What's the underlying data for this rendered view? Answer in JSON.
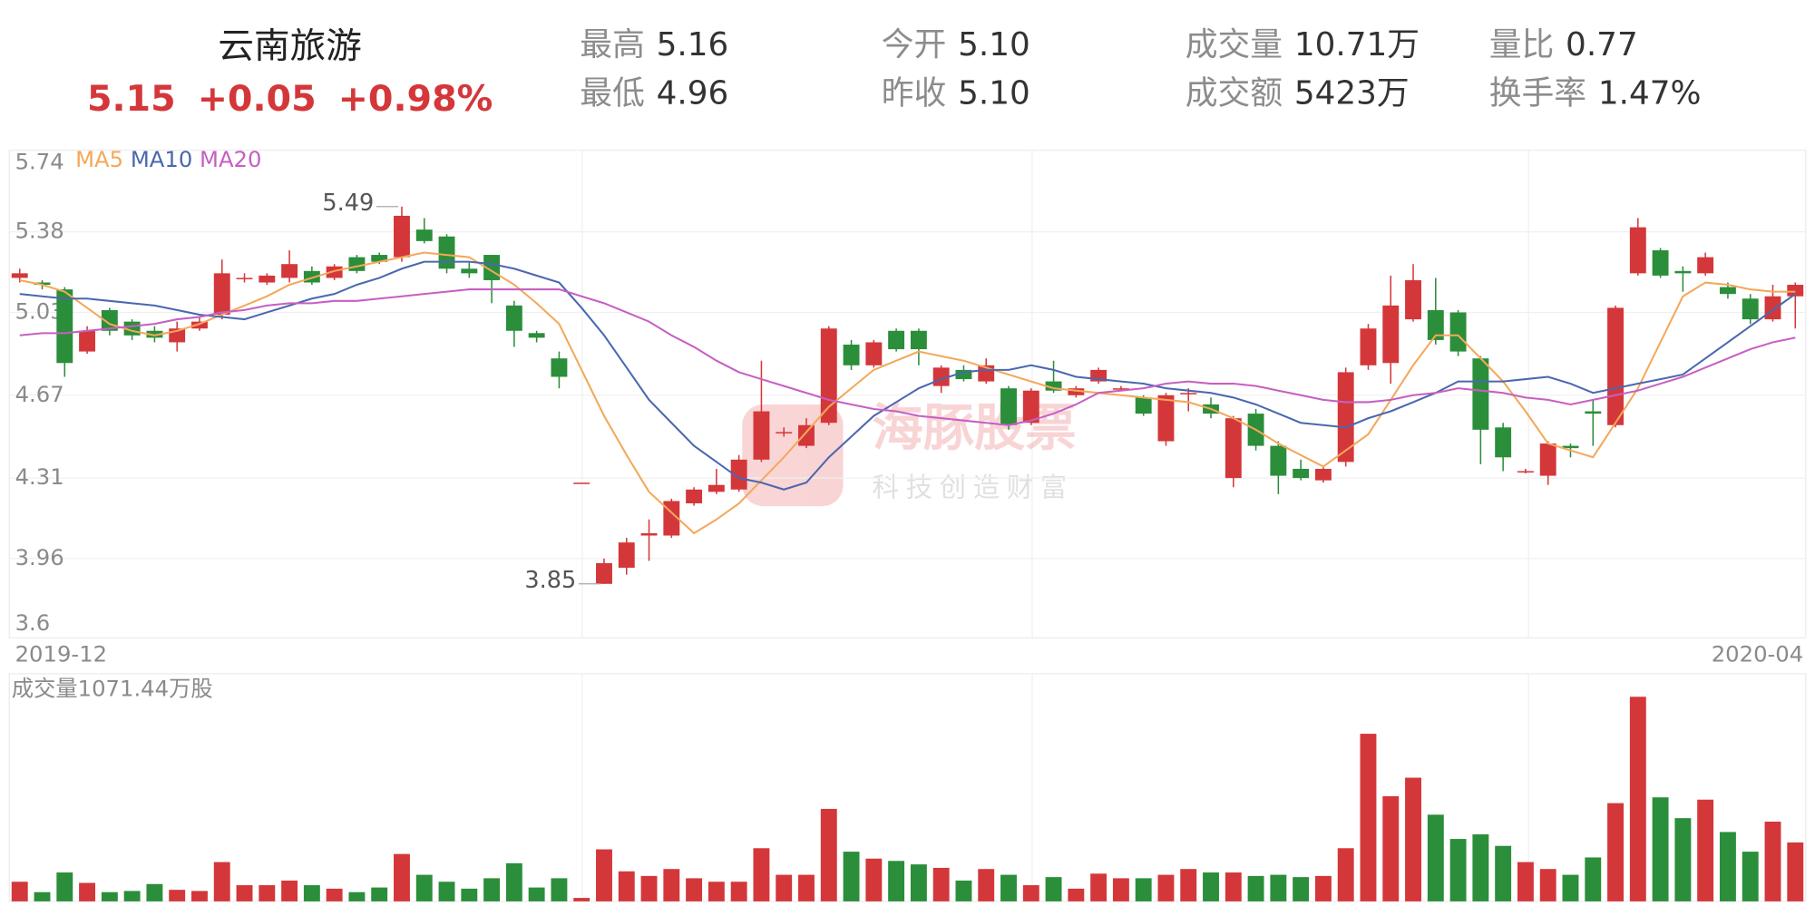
{
  "header": {
    "name": "云南旅游",
    "price": "5.15",
    "change": "+0.05",
    "change_pct": "+0.98%",
    "stats": [
      {
        "label": "最高",
        "value": "5.16"
      },
      {
        "label": "最低",
        "value": "4.96"
      },
      {
        "label": "今开",
        "value": "5.10"
      },
      {
        "label": "昨收",
        "value": "5.10"
      },
      {
        "label": "成交量",
        "value": "10.71万"
      },
      {
        "label": "成交额",
        "value": "5423万"
      },
      {
        "label": "量比",
        "value": "0.77"
      },
      {
        "label": "换手率",
        "value": "1.47%"
      }
    ]
  },
  "watermark": {
    "title": "海豚股票",
    "slogan": "科技创造财富"
  },
  "chart_data": [
    {
      "type": "candlestick",
      "categories": [
        "2019-12",
        null,
        null,
        null,
        null,
        null,
        null,
        null,
        null,
        null,
        null,
        null,
        null,
        null,
        null,
        null,
        null,
        null,
        null,
        null,
        null,
        null,
        null,
        null,
        null,
        null,
        null,
        null,
        null,
        null,
        null,
        null,
        null,
        null,
        null,
        null,
        null,
        null,
        null,
        null,
        null,
        null,
        null,
        null,
        null,
        null,
        null,
        null,
        null,
        null,
        null,
        null,
        null,
        null,
        null,
        null,
        null,
        null,
        null,
        null,
        null,
        null,
        null,
        null,
        null,
        null,
        null,
        null,
        null,
        null,
        null,
        null,
        null,
        null,
        null,
        null,
        null,
        null,
        null,
        "2020-04"
      ],
      "open": [
        5.18,
        5.16,
        5.13,
        4.86,
        5.04,
        4.99,
        4.95,
        4.9,
        4.96,
        5.02,
        5.18,
        5.16,
        5.18,
        5.21,
        5.18,
        5.27,
        5.28,
        5.27,
        5.39,
        5.36,
        5.22,
        5.28,
        5.06,
        4.94,
        4.83,
        4.29,
        3.85,
        3.92,
        4.06,
        4.06,
        4.2,
        4.25,
        4.26,
        4.39,
        4.51,
        4.45,
        4.55,
        4.89,
        4.8,
        4.95,
        4.95,
        4.71,
        4.78,
        4.73,
        4.7,
        4.55,
        4.73,
        4.67,
        4.73,
        4.7,
        4.66,
        4.47,
        4.68,
        4.63,
        4.31,
        4.59,
        4.45,
        4.35,
        4.3,
        4.38,
        4.8,
        4.81,
        5.0,
        5.04,
        5.03,
        4.83,
        4.53,
        4.34,
        4.32,
        4.45,
        4.6,
        4.54,
        5.2,
        5.3,
        5.21,
        5.2,
        5.14,
        5.09,
        5.0,
        5.1
      ],
      "high": [
        5.22,
        5.17,
        5.14,
        4.97,
        5.05,
        5.0,
        4.97,
        4.99,
        5.01,
        5.26,
        5.2,
        5.2,
        5.3,
        5.23,
        5.24,
        5.28,
        5.29,
        5.49,
        5.44,
        5.37,
        5.25,
        5.28,
        5.08,
        4.95,
        4.86,
        4.29,
        3.96,
        4.05,
        4.13,
        4.22,
        4.27,
        4.35,
        4.41,
        4.82,
        4.53,
        4.57,
        4.97,
        4.91,
        4.91,
        4.96,
        4.96,
        4.8,
        4.8,
        4.83,
        4.71,
        4.7,
        4.82,
        4.71,
        4.79,
        4.71,
        4.67,
        4.68,
        4.7,
        4.66,
        4.58,
        4.61,
        4.47,
        4.39,
        4.36,
        4.79,
        4.98,
        5.19,
        5.24,
        5.18,
        5.04,
        4.84,
        4.55,
        4.35,
        4.47,
        4.46,
        4.65,
        5.06,
        5.44,
        5.31,
        5.23,
        5.29,
        5.16,
        5.11,
        5.15,
        5.16
      ],
      "low": [
        5.16,
        5.13,
        4.75,
        4.85,
        4.93,
        4.91,
        4.9,
        4.86,
        4.95,
        5.0,
        5.16,
        5.15,
        5.16,
        5.15,
        5.17,
        5.2,
        5.24,
        5.25,
        5.33,
        5.2,
        5.18,
        5.07,
        4.88,
        4.9,
        4.7,
        4.29,
        3.85,
        3.89,
        3.95,
        4.05,
        4.19,
        4.24,
        4.25,
        4.38,
        4.49,
        4.44,
        4.54,
        4.78,
        4.79,
        4.86,
        4.8,
        4.68,
        4.73,
        4.72,
        4.52,
        4.54,
        4.68,
        4.66,
        4.72,
        4.69,
        4.58,
        4.45,
        4.6,
        4.57,
        4.27,
        4.43,
        4.24,
        4.3,
        4.29,
        4.36,
        4.78,
        4.72,
        4.99,
        4.89,
        4.84,
        4.37,
        4.34,
        4.33,
        4.28,
        4.4,
        4.45,
        4.53,
        5.19,
        5.18,
        5.12,
        5.19,
        5.09,
        4.98,
        4.99,
        4.96
      ],
      "close": [
        5.2,
        5.15,
        4.81,
        4.95,
        4.95,
        4.93,
        4.92,
        4.96,
        4.99,
        5.2,
        5.18,
        5.19,
        5.24,
        5.16,
        5.23,
        5.21,
        5.25,
        5.45,
        5.34,
        5.22,
        5.2,
        5.17,
        4.95,
        4.92,
        4.75,
        4.29,
        3.94,
        4.03,
        4.07,
        4.21,
        4.26,
        4.28,
        4.39,
        4.6,
        4.51,
        4.54,
        4.96,
        4.8,
        4.9,
        4.87,
        4.87,
        4.79,
        4.74,
        4.8,
        4.54,
        4.69,
        4.69,
        4.7,
        4.78,
        4.7,
        4.59,
        4.67,
        4.68,
        4.59,
        4.57,
        4.45,
        4.32,
        4.31,
        4.35,
        4.77,
        4.96,
        5.06,
        5.17,
        4.91,
        4.86,
        4.52,
        4.4,
        4.34,
        4.46,
        4.44,
        4.59,
        5.05,
        5.4,
        5.19,
        5.2,
        5.27,
        5.11,
        5.0,
        5.1,
        5.15
      ],
      "up_color": "#d4373a",
      "down_color": "#2b8e3a",
      "series": [
        {
          "name": "MA5",
          "color": "#f4a85a",
          "values": [
            5.17,
            5.15,
            5.12,
            5.05,
            4.98,
            4.95,
            4.93,
            4.95,
            4.98,
            5.02,
            5.06,
            5.1,
            5.15,
            5.18,
            5.21,
            5.23,
            5.25,
            5.27,
            5.29,
            5.28,
            5.27,
            5.21,
            5.15,
            5.07,
            4.98,
            4.78,
            4.58,
            4.41,
            4.25,
            4.16,
            4.07,
            4.13,
            4.2,
            4.3,
            4.4,
            4.51,
            4.62,
            4.7,
            4.78,
            4.82,
            4.86,
            4.84,
            4.82,
            4.79,
            4.76,
            4.73,
            4.7,
            4.69,
            4.68,
            4.67,
            4.66,
            4.65,
            4.64,
            4.61,
            4.57,
            4.52,
            4.46,
            4.41,
            4.36,
            4.43,
            4.5,
            4.65,
            4.8,
            4.93,
            4.93,
            4.83,
            4.73,
            4.6,
            4.46,
            4.43,
            4.4,
            4.55,
            4.7,
            4.9,
            5.1,
            5.16,
            5.15,
            5.13,
            5.12,
            5.12
          ]
        },
        {
          "name": "MA10",
          "color": "#4a67b0",
          "values": [
            5.11,
            5.1,
            5.09,
            5.09,
            5.08,
            5.07,
            5.06,
            5.04,
            5.02,
            5.01,
            5.0,
            5.03,
            5.06,
            5.09,
            5.11,
            5.15,
            5.18,
            5.22,
            5.25,
            5.25,
            5.25,
            5.24,
            5.22,
            5.19,
            5.16,
            5.05,
            4.93,
            4.79,
            4.65,
            4.55,
            4.45,
            4.38,
            4.31,
            4.29,
            4.26,
            4.29,
            4.4,
            4.49,
            4.58,
            4.64,
            4.7,
            4.74,
            4.77,
            4.78,
            4.78,
            4.8,
            4.78,
            4.75,
            4.74,
            4.73,
            4.72,
            4.7,
            4.69,
            4.68,
            4.66,
            4.63,
            4.59,
            4.55,
            4.54,
            4.53,
            4.57,
            4.6,
            4.64,
            4.68,
            4.73,
            4.73,
            4.73,
            4.74,
            4.75,
            4.72,
            4.68,
            4.7,
            4.72,
            4.74,
            4.76,
            4.83,
            4.9,
            4.97,
            5.04,
            5.11
          ]
        },
        {
          "name": "MA20",
          "color": "#c65fc2",
          "values": [
            4.93,
            4.94,
            4.94,
            4.95,
            4.96,
            4.97,
            4.98,
            5.0,
            5.01,
            5.03,
            5.04,
            5.06,
            5.07,
            5.07,
            5.08,
            5.08,
            5.09,
            5.1,
            5.11,
            5.12,
            5.13,
            5.13,
            5.13,
            5.13,
            5.13,
            5.1,
            5.07,
            5.03,
            4.99,
            4.93,
            4.88,
            4.82,
            4.77,
            4.74,
            4.71,
            4.68,
            4.65,
            4.63,
            4.61,
            4.6,
            4.58,
            4.57,
            4.56,
            4.55,
            4.54,
            4.56,
            4.59,
            4.63,
            4.68,
            4.69,
            4.7,
            4.72,
            4.73,
            4.72,
            4.72,
            4.71,
            4.69,
            4.67,
            4.65,
            4.64,
            4.64,
            4.65,
            4.67,
            4.68,
            4.7,
            4.69,
            4.68,
            4.66,
            4.65,
            4.63,
            4.65,
            4.67,
            4.69,
            4.72,
            4.75,
            4.79,
            4.83,
            4.87,
            4.9,
            4.92
          ]
        }
      ],
      "annotations": [
        5.49,
        3.85
      ],
      "ylim": [
        3.6,
        5.74
      ],
      "yticks": [
        5.74,
        5.38,
        5.03,
        4.67,
        4.31,
        3.96,
        3.6
      ],
      "grid": true
    },
    {
      "type": "bar",
      "title": "成交量1071.44万股",
      "values": [
        357,
        168,
        525,
        336,
        168,
        189,
        315,
        210,
        189,
        714,
        294,
        294,
        378,
        294,
        231,
        168,
        252,
        861,
        483,
        357,
        231,
        420,
        693,
        252,
        420,
        63,
        945,
        546,
        462,
        588,
        420,
        357,
        357,
        966,
        483,
        483,
        1680,
        903,
        777,
        735,
        672,
        609,
        378,
        588,
        483,
        294,
        441,
        231,
        504,
        420,
        420,
        483,
        588,
        525,
        525,
        462,
        483,
        441,
        462,
        966,
        3045,
        1911,
        2247,
        1575,
        1134,
        1218,
        1008,
        714,
        588,
        483,
        798,
        1785,
        3717,
        1890,
        1512,
        1848,
        1260,
        903,
        1449,
        1071
      ],
      "ylim": [
        0,
        3800
      ]
    }
  ]
}
